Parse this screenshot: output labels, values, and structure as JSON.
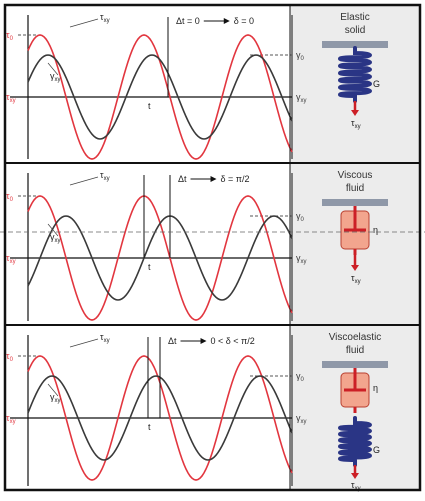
{
  "symbols": {
    "tau_xy": [
      "τ",
      "xy"
    ],
    "tau_0": [
      "τ",
      "0"
    ],
    "gamma_xy": [
      "γ",
      "xy"
    ],
    "gamma_0": [
      "γ",
      "0"
    ],
    "time": "t",
    "modulus": "G",
    "viscosity": "η"
  },
  "panels": [
    {
      "title": [
        "Elastic",
        "solid"
      ],
      "lag_before": "Δt = 0",
      "lag_after": "δ = 0"
    },
    {
      "title": [
        "Viscous",
        "fluid"
      ],
      "lag_before": "Δt",
      "lag_after": "δ = π/2"
    },
    {
      "title": [
        "Viscoelastic",
        "fluid"
      ],
      "lag_before": "Δt",
      "lag_after": "0 < δ < π/2"
    }
  ]
}
